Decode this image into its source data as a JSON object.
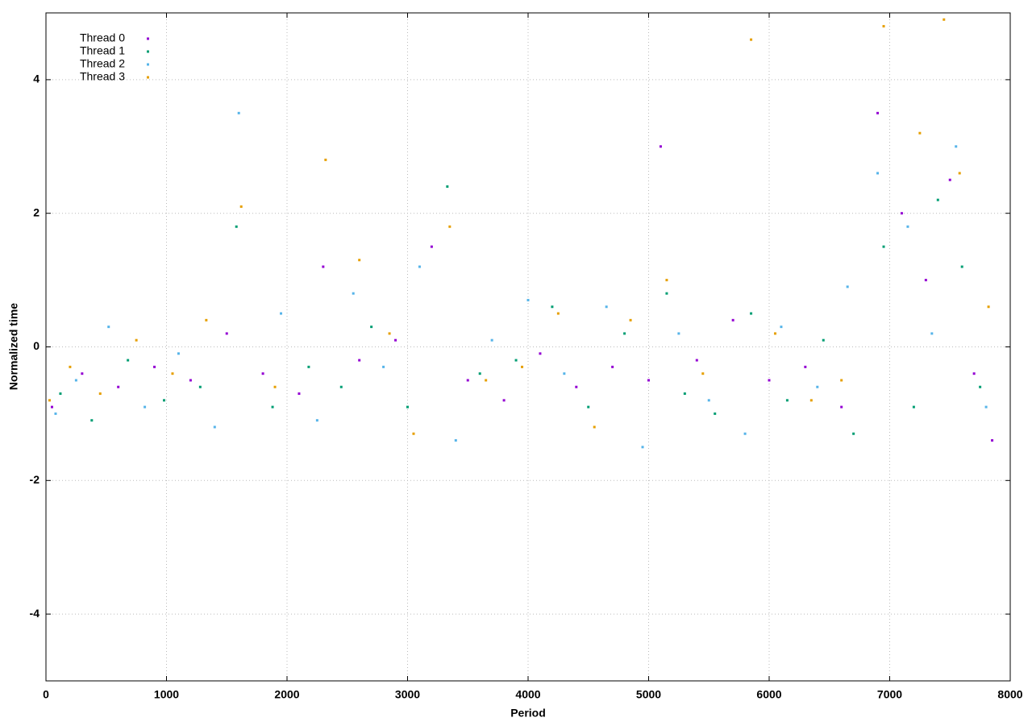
{
  "chart_data": {
    "type": "scatter",
    "xlabel": "Period",
    "ylabel": "Normalized time",
    "xlim": [
      0,
      8000
    ],
    "ylim": [
      -5,
      5
    ],
    "xticks": [
      0,
      1000,
      2000,
      3000,
      4000,
      5000,
      6000,
      7000,
      8000
    ],
    "yticks": [
      -4,
      -2,
      0,
      2,
      4
    ],
    "grid": true,
    "legend": "top-left",
    "series": [
      {
        "name": "Thread 0",
        "color": "#9400d3",
        "x": [
          50,
          300,
          600,
          900,
          1200,
          1500,
          1800,
          2100,
          2300,
          2600,
          2900,
          3200,
          3500,
          3800,
          4100,
          4400,
          4700,
          5000,
          5100,
          5400,
          5700,
          6000,
          6300,
          6600,
          6900,
          7100,
          7300,
          7500,
          7700,
          7850
        ],
        "values": [
          -0.9,
          -0.4,
          -0.6,
          -0.3,
          -0.5,
          0.2,
          -0.4,
          -0.7,
          1.2,
          -0.2,
          0.1,
          1.5,
          -0.5,
          -0.8,
          -0.1,
          -0.6,
          -0.3,
          -0.5,
          3.0,
          -0.2,
          0.4,
          -0.5,
          -0.3,
          -0.9,
          3.5,
          2.0,
          1.0,
          2.5,
          -0.4,
          -1.4
        ]
      },
      {
        "name": "Thread 1",
        "color": "#009e73",
        "x": [
          120,
          380,
          680,
          980,
          1280,
          1580,
          1880,
          2180,
          2450,
          2700,
          3000,
          3330,
          3600,
          3900,
          4200,
          4500,
          4800,
          5150,
          5300,
          5550,
          5850,
          6150,
          6450,
          6700,
          6950,
          7200,
          7400,
          7600,
          7750
        ],
        "values": [
          -0.7,
          -1.1,
          -0.2,
          -0.8,
          -0.6,
          1.8,
          -0.9,
          -0.3,
          -0.6,
          0.3,
          -0.9,
          2.4,
          -0.4,
          -0.2,
          0.6,
          -0.9,
          0.2,
          0.8,
          -0.7,
          -1.0,
          0.5,
          -0.8,
          0.1,
          -1.3,
          1.5,
          -0.9,
          2.2,
          1.2,
          -0.6
        ]
      },
      {
        "name": "Thread 2",
        "color": "#56b4e9",
        "x": [
          80,
          250,
          520,
          820,
          1100,
          1400,
          1600,
          1950,
          2250,
          2550,
          2800,
          3100,
          3400,
          3700,
          4000,
          4300,
          4650,
          4950,
          5250,
          5500,
          5800,
          6100,
          6400,
          6650,
          6900,
          7150,
          7350,
          7550,
          7800
        ],
        "values": [
          -1.0,
          -0.5,
          0.3,
          -0.9,
          -0.1,
          -1.2,
          3.5,
          0.5,
          -1.1,
          0.8,
          -0.3,
          1.2,
          -1.4,
          0.1,
          0.7,
          -0.4,
          0.6,
          -1.5,
          0.2,
          -0.8,
          -1.3,
          0.3,
          -0.6,
          0.9,
          2.6,
          1.8,
          0.2,
          3.0,
          -0.9
        ]
      },
      {
        "name": "Thread 3",
        "color": "#e69f00",
        "x": [
          30,
          200,
          450,
          750,
          1050,
          1330,
          1620,
          1900,
          2320,
          2600,
          2850,
          3050,
          3350,
          3650,
          3950,
          4250,
          4550,
          4850,
          5150,
          5450,
          5850,
          6050,
          6350,
          6600,
          6950,
          7250,
          7450,
          7580,
          7820
        ],
        "values": [
          -0.8,
          -0.3,
          -0.7,
          0.1,
          -0.4,
          0.4,
          2.1,
          -0.6,
          2.8,
          1.3,
          0.2,
          -1.3,
          1.8,
          -0.5,
          -0.3,
          0.5,
          -1.2,
          0.4,
          1.0,
          -0.4,
          4.6,
          0.2,
          -0.8,
          -0.5,
          4.8,
          3.2,
          4.9,
          2.6,
          0.6
        ]
      }
    ]
  }
}
